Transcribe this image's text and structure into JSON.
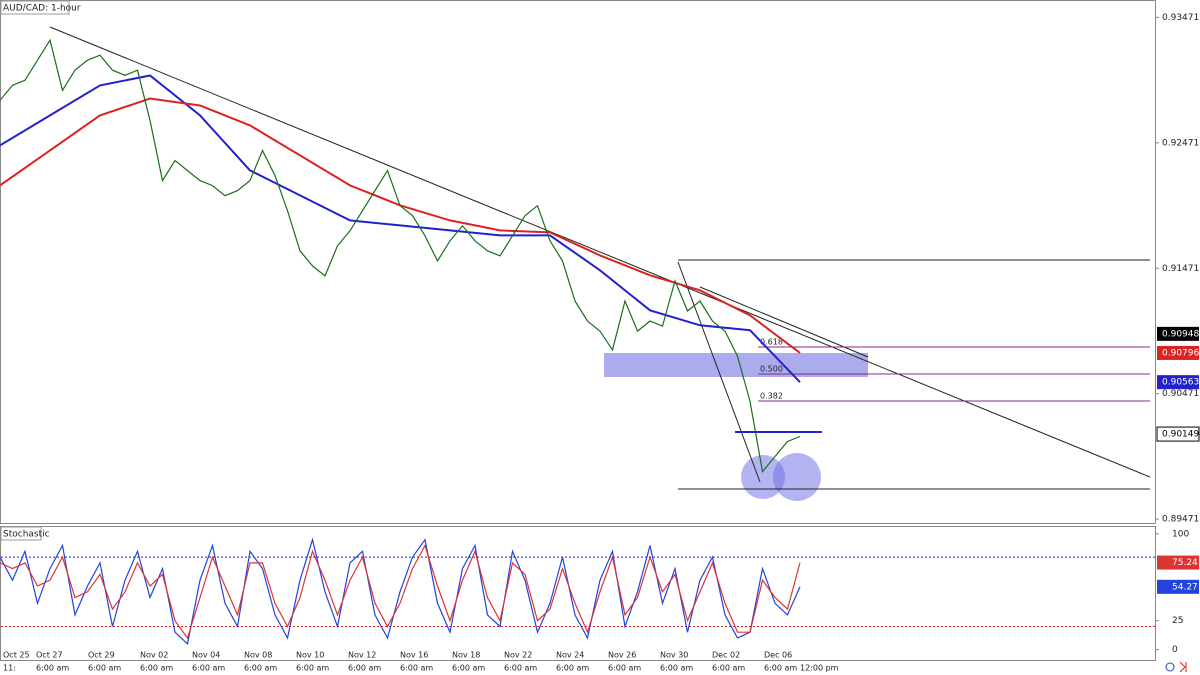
{
  "chart_data": {
    "type": "price-stochastic",
    "title": "AUD/CAD: 1-hour",
    "indicator_title": "Stochastic",
    "price": {
      "name": "AUD/CAD",
      "color": "#1a6e1a",
      "values": [
        0.9281,
        0.9293,
        0.9297,
        0.9313,
        0.9329,
        0.9289,
        0.9305,
        0.9313,
        0.9317,
        0.9305,
        0.9301,
        0.9305,
        0.9265,
        0.9217,
        0.9233,
        0.9225,
        0.9217,
        0.9213,
        0.9205,
        0.9209,
        0.9217,
        0.9241,
        0.9221,
        0.9193,
        0.9161,
        0.9149,
        0.9141,
        0.9165,
        0.9177,
        0.9193,
        0.9209,
        0.9225,
        0.9197,
        0.9189,
        0.9173,
        0.9153,
        0.9169,
        0.9181,
        0.9169,
        0.9161,
        0.9157,
        0.9173,
        0.9189,
        0.9197,
        0.9169,
        0.9153,
        0.9121,
        0.9105,
        0.9097,
        0.9082,
        0.9121,
        0.9097,
        0.9105,
        0.9101,
        0.9137,
        0.9113,
        0.9121,
        0.9105,
        0.9097,
        0.9077,
        0.9041,
        0.8985,
        0.8997,
        0.9009,
        0.9013
      ]
    },
    "moving_averages": [
      {
        "color": "#2222cc",
        "values": [
          0.92451,
          0.9269,
          0.92929,
          0.93008,
          0.9269,
          0.92251,
          0.92052,
          0.91853,
          0.91813,
          0.91773,
          0.91733,
          0.91733,
          0.91455,
          0.91136,
          0.91016,
          0.90977,
          0.90563
        ]
      },
      {
        "color": "#dd2222",
        "values": [
          0.92132,
          0.92411,
          0.9269,
          0.92825,
          0.92769,
          0.9261,
          0.92371,
          0.92132,
          0.91973,
          0.91853,
          0.91773,
          0.91757,
          0.91574,
          0.91415,
          0.91295,
          0.91096,
          0.90796
        ]
      }
    ],
    "ylim": [
      0.8944,
      0.9361
    ],
    "yticks": [
      0.93471,
      0.92471,
      0.91471,
      0.90471,
      0.89471
    ],
    "price_markers": [
      {
        "value": 0.90948,
        "color": "#000000"
      },
      {
        "value": 0.90796,
        "color": "#dd2222"
      },
      {
        "value": 0.90563,
        "color": "#2222cc"
      },
      {
        "value": 0.90149,
        "color": "#ffffff"
      }
    ],
    "fib_labels": [
      "0.618",
      "0.500",
      "0.382"
    ],
    "stochastic": {
      "ylim": [
        -9,
        106
      ],
      "yticks": [
        100,
        25,
        0
      ],
      "levels": [
        {
          "value": 80,
          "color": "#2222cc"
        },
        {
          "value": 20,
          "color": "#dd2222"
        }
      ],
      "series": [
        {
          "color": "#2244dd",
          "values": [
            80,
            60,
            85,
            40,
            70,
            90,
            30,
            55,
            75,
            20,
            60,
            85,
            45,
            70,
            15,
            5,
            60,
            90,
            40,
            20,
            85,
            70,
            30,
            10,
            60,
            95,
            50,
            20,
            75,
            85,
            30,
            10,
            50,
            80,
            95,
            40,
            15,
            70,
            90,
            30,
            20,
            85,
            60,
            15,
            40,
            80,
            30,
            10,
            60,
            85,
            20,
            50,
            90,
            40,
            70,
            15,
            60,
            80,
            30,
            10,
            15,
            70,
            40,
            30,
            54.27
          ]
        },
        {
          "color": "#dd3333",
          "values": [
            75,
            70,
            75,
            55,
            60,
            80,
            45,
            50,
            65,
            35,
            50,
            75,
            55,
            65,
            25,
            10,
            45,
            80,
            55,
            30,
            75,
            75,
            40,
            20,
            45,
            85,
            60,
            30,
            60,
            80,
            40,
            20,
            40,
            70,
            90,
            55,
            25,
            60,
            85,
            45,
            25,
            75,
            65,
            25,
            35,
            70,
            40,
            15,
            50,
            80,
            30,
            45,
            80,
            50,
            65,
            25,
            50,
            75,
            40,
            15,
            15,
            60,
            45,
            35,
            75.24
          ]
        }
      ]
    },
    "date_labels": [
      "Oct 25",
      "Oct 27",
      "Oct 29",
      "Nov 02",
      "Nov 04",
      "Nov 08",
      "Nov 10",
      "Nov 12",
      "Nov 16",
      "Nov 18",
      "Nov 22",
      "Nov 24",
      "Nov 26",
      "Nov 30",
      "Dec 02",
      "Dec 06"
    ],
    "time_labels": [
      "11:",
      "6:00 am",
      "6:00 am",
      "6:00 am",
      "6:00 am",
      "6:00 am",
      "6:00 am",
      "6:00 am",
      "6:00 am",
      "6:00 am",
      "6:00 am",
      "6:00 am",
      "6:00 am",
      "6:00 am",
      "6:00 am",
      "6:00 am",
      "12:00 pm"
    ]
  }
}
